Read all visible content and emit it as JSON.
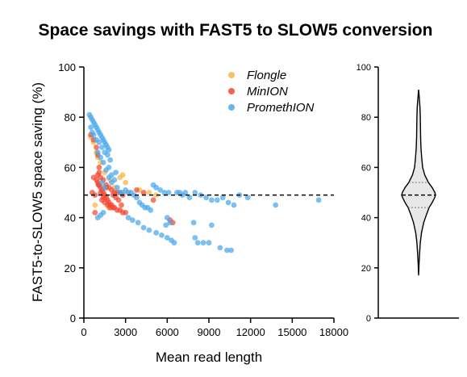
{
  "title": "Space savings with FAST5 to SLOW5 conversion",
  "colors": {
    "Flongle": "#F5B942",
    "MinION": "#F2462E",
    "PromethION": "#4AA8EC"
  },
  "chart_data": [
    {
      "type": "scatter",
      "xlabel": "Mean read length",
      "ylabel": "FAST5-to-SLOW5 space saving (%)",
      "xlim": [
        0,
        18000
      ],
      "ylim": [
        0,
        100
      ],
      "xticks": [
        "0",
        "3000",
        "6000",
        "9000",
        "12000",
        "15000",
        "18000"
      ],
      "yticks": [
        "0",
        "20",
        "40",
        "60",
        "80",
        "100"
      ],
      "legend_position": "top-right",
      "grid": false,
      "reference_line": {
        "y": 49,
        "style": "dashed"
      },
      "series": [
        {
          "name": "Flongle",
          "points": [
            [
              500,
              72
            ],
            [
              700,
              70
            ],
            [
              900,
              66
            ],
            [
              1000,
              64
            ],
            [
              1200,
              62
            ],
            [
              1500,
              58
            ],
            [
              1900,
              55
            ],
            [
              2200,
              52
            ],
            [
              2600,
              56
            ],
            [
              2800,
              57
            ],
            [
              3000,
              54
            ],
            [
              3200,
              50
            ],
            [
              4000,
              51
            ],
            [
              4700,
              50
            ],
            [
              5200,
              49
            ],
            [
              800,
              45
            ],
            [
              1800,
              44
            ]
          ]
        },
        {
          "name": "MinION",
          "points": [
            [
              500,
              73
            ],
            [
              700,
              71
            ],
            [
              900,
              68
            ],
            [
              1000,
              65
            ],
            [
              1100,
              60
            ],
            [
              700,
              56
            ],
            [
              900,
              55
            ],
            [
              1000,
              54
            ],
            [
              1100,
              53
            ],
            [
              1200,
              52
            ],
            [
              1300,
              51
            ],
            [
              1400,
              50
            ],
            [
              1500,
              49
            ],
            [
              1600,
              48
            ],
            [
              1700,
              47
            ],
            [
              1800,
              46
            ],
            [
              1900,
              45
            ],
            [
              2000,
              45
            ],
            [
              2100,
              44
            ],
            [
              2200,
              44
            ],
            [
              2400,
              43
            ],
            [
              2600,
              43
            ],
            [
              2800,
              42
            ],
            [
              3000,
              42
            ],
            [
              1200,
              56
            ],
            [
              1400,
              55
            ],
            [
              1600,
              53
            ],
            [
              1800,
              52
            ],
            [
              2000,
              51
            ],
            [
              2200,
              50
            ],
            [
              2400,
              50
            ],
            [
              2600,
              50
            ],
            [
              2800,
              49
            ],
            [
              1300,
              47
            ],
            [
              1500,
              46
            ],
            [
              1700,
              45
            ],
            [
              1900,
              44
            ],
            [
              1000,
              57
            ],
            [
              1200,
              50
            ],
            [
              1400,
              48
            ],
            [
              800,
              49
            ],
            [
              600,
              50
            ],
            [
              2500,
              47
            ],
            [
              2300,
              48
            ],
            [
              2100,
              49
            ],
            [
              1100,
              58
            ],
            [
              3800,
              51
            ],
            [
              4300,
              50
            ],
            [
              5000,
              47
            ],
            [
              6400,
              38
            ],
            [
              6200,
              39
            ],
            [
              800,
              42
            ],
            [
              1600,
              52
            ],
            [
              2700,
              45
            ],
            [
              1050,
              53
            ]
          ]
        },
        {
          "name": "PromethION",
          "points": [
            [
              400,
              81
            ],
            [
              500,
              80
            ],
            [
              600,
              79
            ],
            [
              700,
              78
            ],
            [
              800,
              77
            ],
            [
              900,
              76
            ],
            [
              1000,
              75
            ],
            [
              1100,
              74
            ],
            [
              1200,
              73
            ],
            [
              1300,
              72
            ],
            [
              1400,
              71
            ],
            [
              1500,
              70
            ],
            [
              1600,
              69
            ],
            [
              1700,
              68
            ],
            [
              1800,
              67
            ],
            [
              500,
              76
            ],
            [
              600,
              74
            ],
            [
              700,
              73
            ],
            [
              900,
              71
            ],
            [
              1100,
              70
            ],
            [
              1300,
              68
            ],
            [
              1500,
              66
            ],
            [
              1700,
              65
            ],
            [
              1900,
              63
            ],
            [
              1800,
              60
            ],
            [
              2000,
              57
            ],
            [
              2200,
              55
            ],
            [
              1000,
              66
            ],
            [
              1200,
              64
            ],
            [
              1400,
              62
            ],
            [
              1600,
              59
            ],
            [
              1800,
              56
            ],
            [
              2400,
              52
            ],
            [
              2600,
              50
            ],
            [
              2800,
              50
            ],
            [
              3000,
              51
            ],
            [
              3200,
              50
            ],
            [
              3400,
              50
            ],
            [
              3600,
              49
            ],
            [
              3800,
              48
            ],
            [
              4000,
              46
            ],
            [
              4200,
              45
            ],
            [
              4400,
              44
            ],
            [
              4600,
              44
            ],
            [
              4800,
              43
            ],
            [
              3200,
              40
            ],
            [
              3500,
              39
            ],
            [
              3900,
              38
            ],
            [
              4300,
              36
            ],
            [
              4700,
              35
            ],
            [
              5200,
              34
            ],
            [
              5600,
              33
            ],
            [
              6000,
              32
            ],
            [
              6300,
              31
            ],
            [
              6500,
              30
            ],
            [
              6000,
              40
            ],
            [
              6200,
              38
            ],
            [
              5900,
              37
            ],
            [
              6700,
              50
            ],
            [
              6900,
              50
            ],
            [
              7100,
              49
            ],
            [
              7300,
              50
            ],
            [
              7600,
              48
            ],
            [
              8000,
              50
            ],
            [
              8400,
              49
            ],
            [
              8800,
              48
            ],
            [
              9200,
              47
            ],
            [
              9600,
              47
            ],
            [
              10000,
              48
            ],
            [
              10400,
              46
            ],
            [
              10800,
              45
            ],
            [
              11200,
              49
            ],
            [
              11800,
              48
            ],
            [
              13800,
              45
            ],
            [
              16900,
              47
            ],
            [
              8000,
              32
            ],
            [
              8200,
              30
            ],
            [
              8600,
              30
            ],
            [
              9000,
              30
            ],
            [
              9800,
              28
            ],
            [
              10300,
              27
            ],
            [
              10600,
              27
            ],
            [
              9200,
              37
            ],
            [
              7900,
              38
            ],
            [
              1400,
              42
            ],
            [
              1200,
              41
            ],
            [
              1000,
              40
            ],
            [
              5000,
              53
            ],
            [
              5200,
              52
            ],
            [
              5500,
              51
            ],
            [
              5800,
              50
            ],
            [
              6100,
              50
            ],
            [
              1300,
              54
            ],
            [
              1500,
              52
            ],
            [
              2000,
              54
            ],
            [
              2300,
              58
            ]
          ]
        }
      ]
    },
    {
      "type": "violin",
      "ylim": [
        0,
        100
      ],
      "yticks": [
        "0",
        "20",
        "40",
        "60",
        "80",
        "100"
      ],
      "min": 17,
      "max": 91,
      "median": 49,
      "quartiles": [
        44,
        54
      ],
      "density": [
        [
          17,
          0.0
        ],
        [
          22,
          0.03
        ],
        [
          26,
          0.06
        ],
        [
          30,
          0.1
        ],
        [
          34,
          0.17
        ],
        [
          38,
          0.3
        ],
        [
          41,
          0.45
        ],
        [
          44,
          0.62
        ],
        [
          46,
          0.8
        ],
        [
          48,
          0.95
        ],
        [
          49,
          1.0
        ],
        [
          50,
          0.96
        ],
        [
          52,
          0.8
        ],
        [
          54,
          0.58
        ],
        [
          57,
          0.36
        ],
        [
          60,
          0.24
        ],
        [
          64,
          0.18
        ],
        [
          68,
          0.14
        ],
        [
          72,
          0.12
        ],
        [
          76,
          0.11
        ],
        [
          80,
          0.1
        ],
        [
          84,
          0.08
        ],
        [
          88,
          0.04
        ],
        [
          91,
          0.0
        ]
      ]
    }
  ]
}
